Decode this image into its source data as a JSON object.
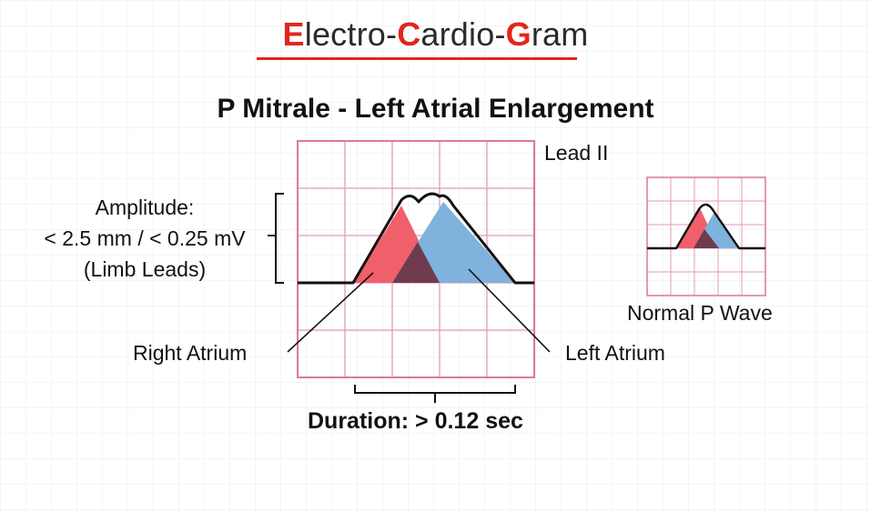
{
  "header": {
    "title_parts": [
      {
        "cap": "E",
        "rest": "lectro-"
      },
      {
        "cap": "C",
        "rest": "ardio-"
      },
      {
        "cap": "G",
        "rest": "ram"
      }
    ],
    "subtitle": "P Mitrale - Left Atrial Enlargement"
  },
  "labels": {
    "lead": "Lead II",
    "amplitude_title": "Amplitude:",
    "amplitude_value": "< 2.5 mm / < 0.25 mV",
    "amplitude_note": "(Limb Leads)",
    "right_atrium": "Right Atrium",
    "left_atrium": "Left Atrium",
    "duration": "Duration: > 0.12 sec",
    "normal_p_wave": "Normal P Wave"
  },
  "colors": {
    "title_accent": "#e1261c",
    "grid_line": "#e39ab8",
    "right_atrium": "#f0606a",
    "left_atrium": "#7fb2dc",
    "overlap": "#6e3b4f",
    "trace": "#111111"
  }
}
